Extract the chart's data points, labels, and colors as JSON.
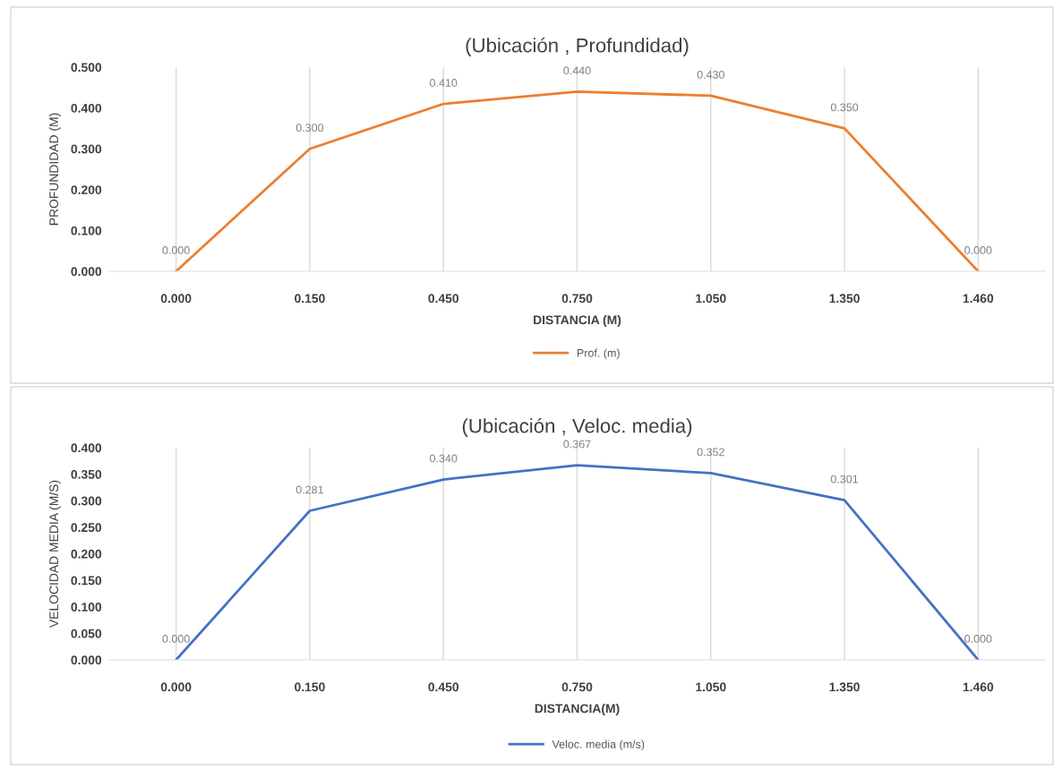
{
  "chart_data": [
    {
      "type": "line",
      "title": "(Ubicación , Profundidad)",
      "xlabel": "DISTANCIA (M)",
      "ylabel": "PROFUNDIDAD (M)",
      "categories": [
        "0.000",
        "0.150",
        "0.450",
        "0.750",
        "1.050",
        "1.350",
        "1.460"
      ],
      "series": [
        {
          "name": "Prof. (m)",
          "color": "#ed7d31",
          "values": [
            0,
            0.3,
            0.41,
            0.44,
            0.43,
            0.35,
            0
          ],
          "value_labels": [
            "0.000",
            "0.300",
            "0.410",
            "0.440",
            "0.430",
            "0.350",
            "0.000"
          ]
        }
      ],
      "ylim": [
        0,
        0.5
      ],
      "yticks": [
        {
          "value": 0,
          "label": "0.000"
        },
        {
          "value": 0.1,
          "label": "0.100"
        },
        {
          "value": 0.2,
          "label": "0.200"
        },
        {
          "value": 0.3,
          "label": "0.300"
        },
        {
          "value": 0.4,
          "label": "0.400"
        },
        {
          "value": 0.5,
          "label": "0.500"
        }
      ],
      "grid": "x",
      "legend": "bottom",
      "marker": "none",
      "line_style": "solid"
    },
    {
      "type": "line",
      "title": "(Ubicación , Veloc. media)",
      "xlabel": "DISTANCIA(M)",
      "ylabel": "VELOCIDAD MEDIA (M/S)",
      "categories": [
        "0.000",
        "0.150",
        "0.450",
        "0.750",
        "1.050",
        "1.350",
        "1.460"
      ],
      "series": [
        {
          "name": "Veloc. media (m/s)",
          "color": "#4472c4",
          "values": [
            0,
            0.281,
            0.34,
            0.367,
            0.352,
            0.301,
            0
          ],
          "value_labels": [
            "0.000",
            "0.281",
            "0.340",
            "0.367",
            "0.352",
            "0.301",
            "0.000"
          ]
        }
      ],
      "ylim": [
        0,
        0.4
      ],
      "yticks": [
        {
          "value": 0,
          "label": "0.000"
        },
        {
          "value": 0.05,
          "label": "0.050"
        },
        {
          "value": 0.1,
          "label": "0.100"
        },
        {
          "value": 0.15,
          "label": "0.150"
        },
        {
          "value": 0.2,
          "label": "0.200"
        },
        {
          "value": 0.25,
          "label": "0.250"
        },
        {
          "value": 0.3,
          "label": "0.300"
        },
        {
          "value": 0.35,
          "label": "0.350"
        },
        {
          "value": 0.4,
          "label": "0.400"
        }
      ],
      "grid": "x",
      "legend": "bottom",
      "marker": "none",
      "line_style": "solid"
    }
  ]
}
